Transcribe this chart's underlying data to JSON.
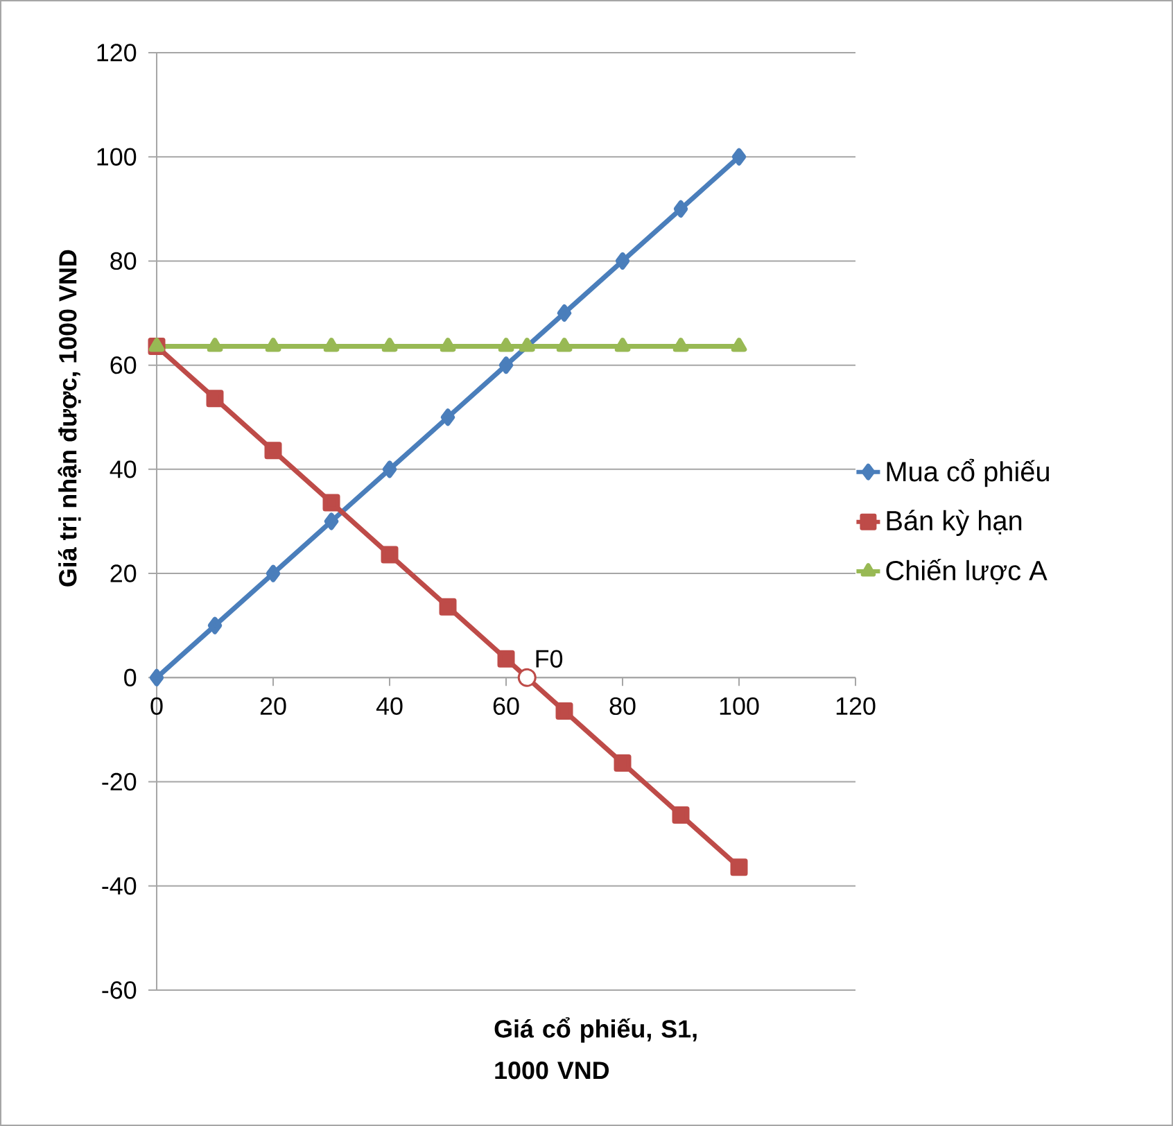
{
  "chart_data": {
    "type": "line",
    "xlabel": "Giá cổ phiếu, S1, 1000 VND",
    "ylabel": "Giá trị nhận được, 1000 VND",
    "x": [
      0,
      10,
      20,
      30,
      40,
      50,
      60,
      70,
      80,
      90,
      100
    ],
    "series": [
      {
        "name": "Mua cổ phiếu",
        "color": "#4a7ebb",
        "marker": "diamond",
        "values": [
          0,
          10,
          20,
          30,
          40,
          50,
          60,
          70,
          80,
          90,
          100
        ]
      },
      {
        "name": "Bán kỳ hạn",
        "color": "#be4b48",
        "marker": "square",
        "values": [
          63.6,
          53.6,
          43.6,
          33.6,
          23.6,
          13.6,
          3.6,
          -6.4,
          -16.4,
          -26.4,
          -36.4
        ]
      },
      {
        "name": "Chiến lược A",
        "color": "#98b954",
        "marker": "triangle",
        "x": [
          0,
          10,
          20,
          30,
          40,
          50,
          60,
          63.6,
          70,
          80,
          90,
          100
        ],
        "values": [
          63.6,
          63.6,
          63.6,
          63.6,
          63.6,
          63.6,
          63.6,
          63.6,
          63.6,
          63.6,
          63.6,
          63.6
        ]
      }
    ],
    "annotations": [
      {
        "text": "F0",
        "x": 63.6,
        "y": 0
      }
    ],
    "xlim": [
      0,
      120
    ],
    "ylim": [
      -60,
      120
    ],
    "xticks": [
      0,
      20,
      40,
      60,
      80,
      100,
      120
    ],
    "yticks": [
      -60,
      -40,
      -20,
      0,
      20,
      40,
      60,
      80,
      100,
      120
    ],
    "grid": "y",
    "legend": "right",
    "line_style": "solid"
  }
}
